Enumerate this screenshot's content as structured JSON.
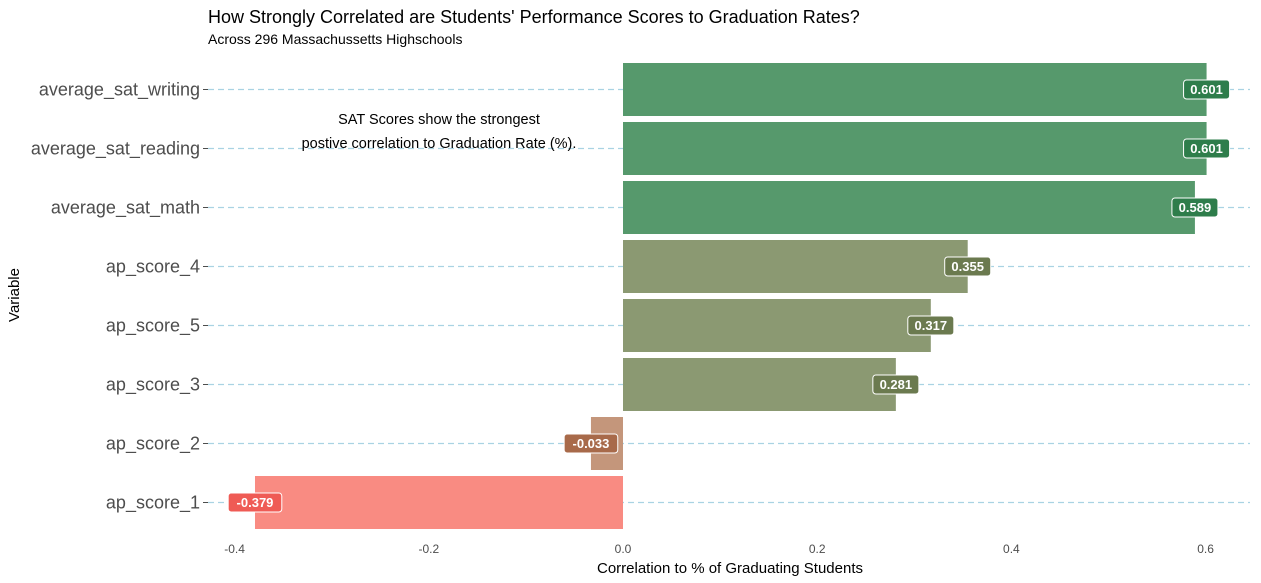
{
  "chart_data": {
    "type": "bar",
    "orientation": "horizontal",
    "title": "How Strongly Correlated are Students' Performance Scores to Graduation Rates?",
    "subtitle": "Across 296 Massachussetts Highschools",
    "xlabel": "Correlation to % of Graduating Students",
    "ylabel": "Variable",
    "xlim": [
      -0.4,
      0.6
    ],
    "x_ticks": [
      "-0.4",
      "-0.2",
      "0.0",
      "0.2",
      "0.4",
      "0.6"
    ],
    "gridlines": "dashed horizontal at each category",
    "categories": [
      "average_sat_writing",
      "average_sat_reading",
      "average_sat_math",
      "ap_score_4",
      "ap_score_5",
      "ap_score_3",
      "ap_score_2",
      "ap_score_1"
    ],
    "values": [
      0.601,
      0.601,
      0.589,
      0.355,
      0.317,
      0.281,
      -0.033,
      -0.379
    ],
    "value_labels": [
      "0.601",
      "0.601",
      "0.589",
      "0.355",
      "0.317",
      "0.281",
      "-0.033",
      "-0.379"
    ],
    "bar_colors": [
      "#56996c",
      "#56996c",
      "#56996c",
      "#8b9972",
      "#8b9972",
      "#8b9972",
      "#c4967b",
      "#f98b82"
    ],
    "label_colors": [
      "#2e7d4b",
      "#2e7d4b",
      "#2e7d4b",
      "#6b7a4f",
      "#6b7a4f",
      "#6b7a4f",
      "#a86a4a",
      "#ef5b55"
    ],
    "annotation": {
      "line1": "SAT Scores show the strongest",
      "line2": "postive correlation to Graduation Rate (%)."
    }
  }
}
